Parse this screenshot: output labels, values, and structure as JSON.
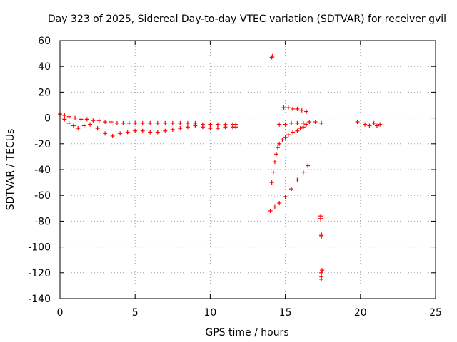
{
  "chart_data": {
    "type": "scatter",
    "title": "Day 323 of 2025, Sidereal Day-to-day VTEC variation (SDTVAR) for receiver gvil",
    "xlabel": "GPS time / hours",
    "ylabel": "SDTVAR / TECUs",
    "xlim": [
      0,
      25
    ],
    "ylim": [
      -140,
      60
    ],
    "x_ticks": [
      "0",
      "5",
      "10",
      "15",
      "20",
      "25"
    ],
    "y_ticks": [
      "60",
      "40",
      "20",
      "0",
      "-20",
      "-40",
      "-60",
      "-80",
      "-100",
      "-120",
      "-140"
    ],
    "grid": true,
    "marker": "+",
    "color": "#ff0000",
    "series": [
      {
        "name": "main-band-upper",
        "x": [
          0.0,
          0.3,
          0.6,
          1.0,
          1.4,
          1.8,
          2.2,
          2.6,
          3.0,
          3.4,
          3.8,
          4.2,
          4.6,
          5.0,
          5.5,
          6.0,
          6.5,
          7.0,
          7.5,
          8.0,
          8.5,
          9.0,
          9.5,
          10.0,
          10.5,
          11.0,
          11.5,
          11.7
        ],
        "y": [
          3,
          2,
          1,
          0,
          -1,
          -1,
          -2,
          -2,
          -3,
          -3,
          -4,
          -4,
          -4,
          -4,
          -4,
          -4,
          -4,
          -4,
          -4,
          -4,
          -4,
          -4,
          -5,
          -5,
          -5,
          -5,
          -5,
          -5
        ]
      },
      {
        "name": "main-band-lower",
        "x": [
          0.3,
          0.6,
          0.9,
          1.2,
          1.6,
          2.0,
          2.5,
          3.0,
          3.5,
          4.0,
          4.5,
          5.0,
          5.5,
          6.0,
          6.5,
          7.0,
          7.5,
          8.0,
          8.5,
          9.0,
          9.5,
          10.0,
          10.5,
          11.0,
          11.5,
          11.7
        ],
        "y": [
          -1,
          -4,
          -6,
          -8,
          -6,
          -5,
          -8,
          -12,
          -14,
          -12,
          -11,
          -10,
          -10,
          -11,
          -11,
          -10,
          -9,
          -8,
          -7,
          -6,
          -7,
          -8,
          -8,
          -7,
          -7,
          -7
        ]
      },
      {
        "name": "spike-near-14h",
        "x": [
          14.1,
          14.15
        ],
        "y": [
          47,
          48
        ]
      },
      {
        "name": "drop-segment",
        "x": [
          14.1,
          14.2,
          14.3,
          14.4,
          14.5,
          14.6,
          14.8,
          15.0,
          15.2,
          15.5,
          15.8,
          16.0,
          16.2,
          16.4
        ],
        "y": [
          -50,
          -42,
          -34,
          -28,
          -23,
          -20,
          -17,
          -15,
          -13,
          -11,
          -10,
          -8,
          -7,
          -5
        ]
      },
      {
        "name": "descending-arc",
        "x": [
          14.0,
          14.3,
          14.6,
          15.0,
          15.4,
          15.8,
          16.2,
          16.5
        ],
        "y": [
          -72,
          -69,
          -66,
          -61,
          -55,
          -48,
          -42,
          -37
        ]
      },
      {
        "name": "upper-right-cluster",
        "x": [
          14.9,
          15.2,
          15.5,
          15.8,
          16.1,
          16.4
        ],
        "y": [
          8,
          8,
          7,
          7,
          6,
          5
        ]
      },
      {
        "name": "mid-right-band",
        "x": [
          14.6,
          15.0,
          15.4,
          15.8,
          16.2,
          16.6,
          17.0,
          17.4
        ],
        "y": [
          -5,
          -5,
          -4,
          -4,
          -4,
          -3,
          -3,
          -4
        ]
      },
      {
        "name": "vertical-clusters-17h",
        "x": [
          17.35,
          17.35,
          17.4,
          17.4,
          17.4,
          17.45,
          17.4,
          17.4,
          17.4
        ],
        "y": [
          -76,
          -78,
          -90,
          -91,
          -92,
          -118,
          -120,
          -123,
          -125
        ]
      },
      {
        "name": "cluster-20-21h",
        "x": [
          19.8,
          20.3,
          20.6,
          20.9,
          21.1,
          21.3
        ],
        "y": [
          -3,
          -5,
          -6,
          -4,
          -6,
          -5
        ]
      }
    ]
  }
}
